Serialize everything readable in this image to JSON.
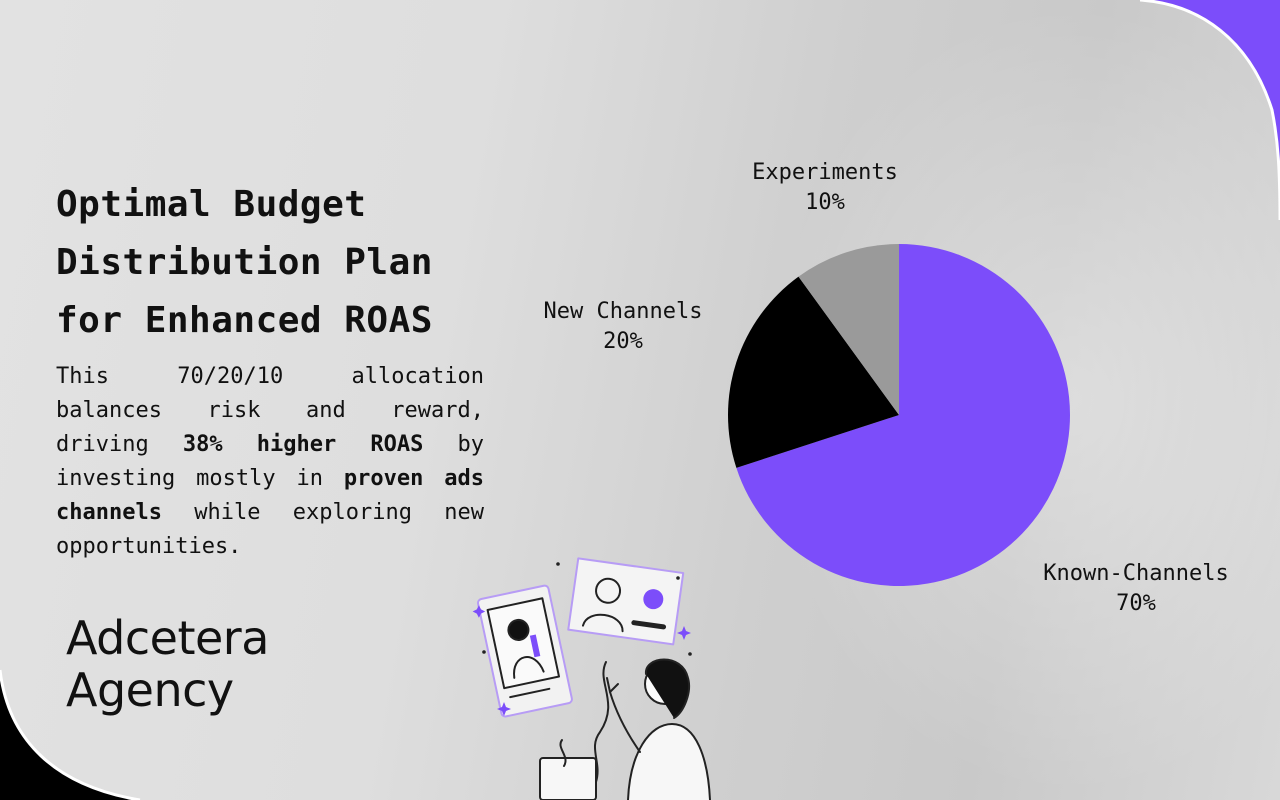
{
  "title": "Optimal Budget Distribution Plan for Enhanced ROAS",
  "body": {
    "part1": "This 70/20/10 allocation balances risk and reward, driving ",
    "bold1": "38% higher ROAS",
    "part2": " by investing mostly in ",
    "bold2": "proven ads channels",
    "part3": " while exploring new opportunities."
  },
  "brand": {
    "line1": "Adcetera",
    "line2": "Agency"
  },
  "colors": {
    "accent": "#7c4dfa",
    "dark": "#000000",
    "gray": "#9a9a9a"
  },
  "chart_data": {
    "type": "pie",
    "title": "",
    "series": [
      {
        "name": "Known-Channels",
        "value": 70,
        "label": "70%",
        "color": "#7c4dfa"
      },
      {
        "name": "New Channels",
        "value": 20,
        "label": "20%",
        "color": "#000000"
      },
      {
        "name": "Experiments",
        "value": 10,
        "label": "10%",
        "color": "#9a9a9a"
      }
    ],
    "start": "12 o'clock",
    "direction": "clockwise"
  }
}
